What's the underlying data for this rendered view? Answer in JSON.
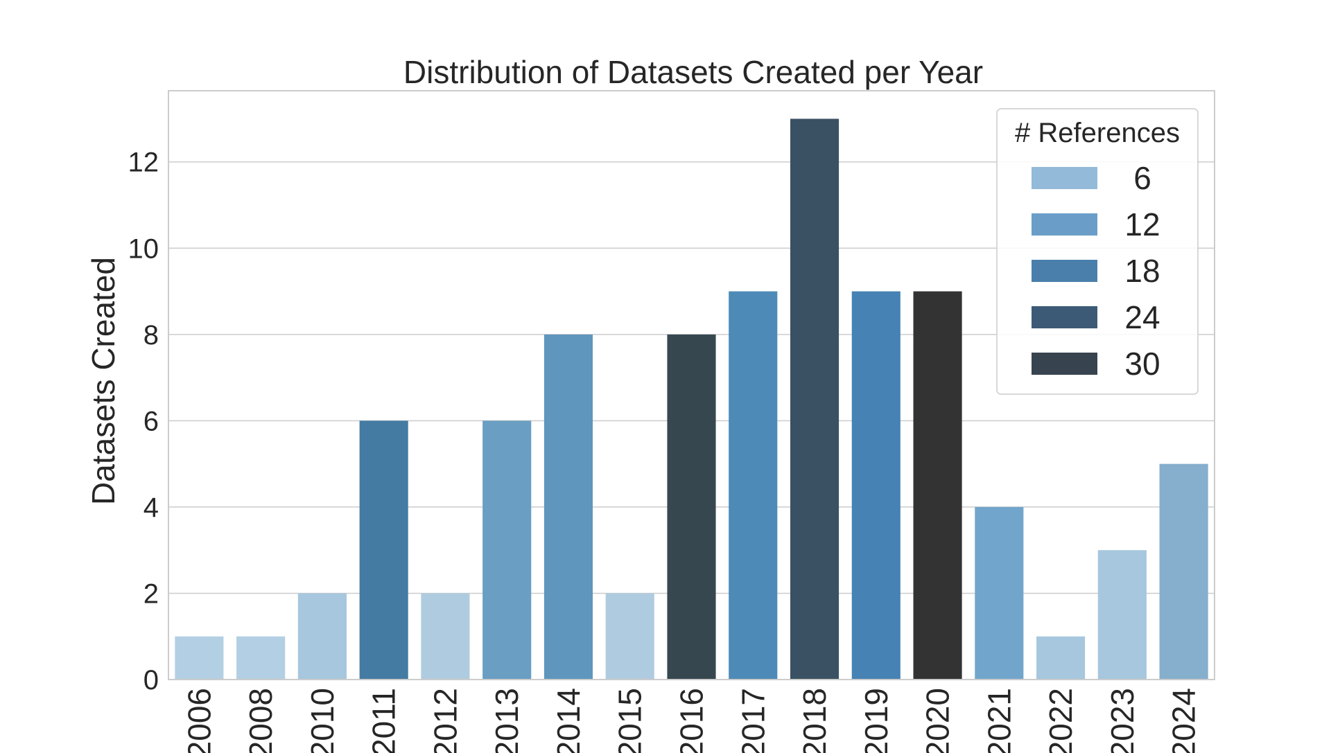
{
  "chart_data": {
    "type": "bar",
    "title": "Distribution of Datasets Created per Year",
    "xlabel": "",
    "ylabel": "Datasets Created",
    "ylim": [
      0,
      13.65
    ],
    "yticks": [
      0,
      2,
      4,
      6,
      8,
      10,
      12
    ],
    "grid": true,
    "categories": [
      "2006",
      "2008",
      "2010",
      "2011",
      "2012",
      "2013",
      "2014",
      "2015",
      "2016",
      "2017",
      "2018",
      "2019",
      "2020",
      "2021",
      "2022",
      "2023",
      "2024"
    ],
    "values": [
      1,
      1,
      2,
      6,
      2,
      6,
      8,
      2,
      8,
      9,
      13,
      9,
      9,
      4,
      1,
      3,
      5
    ],
    "bar_colors": [
      "#b3cfe3",
      "#b3cfe3",
      "#a6c7dd",
      "#447ba2",
      "#afcbe0",
      "#6a9ec3",
      "#5e96bd",
      "#afcbe0",
      "#37474f",
      "#4e8ab7",
      "#3a5163",
      "#4682b4",
      "#333333",
      "#72a5cb",
      "#a6c7dd",
      "#a6c7dd",
      "#86aecd"
    ],
    "legend": {
      "title": "# References",
      "placement": "top-right",
      "entries": [
        {
          "label": "6",
          "color": "#93bad8"
        },
        {
          "label": "12",
          "color": "#6a9ec8"
        },
        {
          "label": "18",
          "color": "#4a7fab"
        },
        {
          "label": "24",
          "color": "#3c5a76"
        },
        {
          "label": "30",
          "color": "#37434e"
        }
      ]
    }
  }
}
